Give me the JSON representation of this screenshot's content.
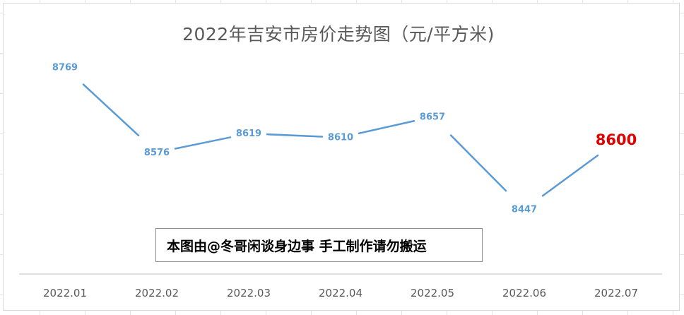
{
  "chart_data": {
    "type": "line",
    "title": "2022年吉安市房价走势图（元/平方米)",
    "categories": [
      "2022.01",
      "2022.02",
      "2022.03",
      "2022.04",
      "2022.05",
      "2022.06",
      "2022.07"
    ],
    "values": [
      8769,
      8576,
      8619,
      8610,
      8657,
      8447,
      8600
    ],
    "data_labels": [
      "8769",
      "8576",
      "8619",
      "8610",
      "8657",
      "8447",
      "8600"
    ],
    "highlight_index": 6,
    "ylim": [
      8300,
      8850
    ],
    "grid": false,
    "legend": "none",
    "xlabel": "",
    "ylabel": ""
  },
  "annotation": "本图由@冬哥闲谈身边事 手工制作请勿搬运",
  "colors": {
    "line": "#5b9bd5",
    "label": "#5b9bd5",
    "highlight_label": "#e00000",
    "axis": "#bfbfbf",
    "tick_text": "#595959"
  }
}
